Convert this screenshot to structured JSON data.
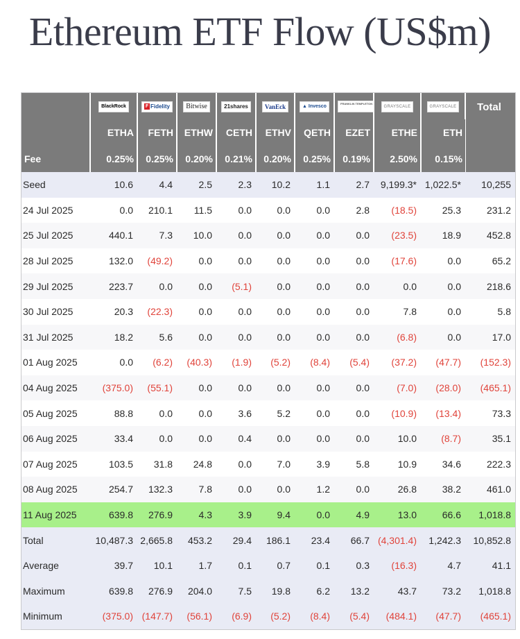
{
  "title": "Ethereum ETF Flow (US$m)",
  "issuers": [
    "BlackRock",
    "Fidelity",
    "Bitwise",
    "21shares",
    "VanEck",
    "Invesco",
    "FRANKLIN TEMPLETON",
    "GRAYSCALE",
    "GRAYSCALE"
  ],
  "total_header": "Total",
  "tickers": [
    "ETHA",
    "FETH",
    "ETHW",
    "CETH",
    "ETHV",
    "QETH",
    "EZET",
    "ETHE",
    "ETH"
  ],
  "fee_label": "Fee",
  "fees": [
    "0.25%",
    "0.25%",
    "0.20%",
    "0.21%",
    "0.20%",
    "0.25%",
    "0.19%",
    "2.50%",
    "0.15%"
  ],
  "rows": [
    {
      "label": "Seed",
      "values": [
        "10.6",
        "4.4",
        "2.5",
        "2.3",
        "10.2",
        "1.1",
        "2.7",
        "9,199.3*",
        "1,022.5*",
        "10,255"
      ]
    },
    {
      "label": "24 Jul 2025",
      "values": [
        "0.0",
        "210.1",
        "11.5",
        "0.0",
        "0.0",
        "0.0",
        "2.8",
        "(18.5)",
        "25.3",
        "231.2"
      ]
    },
    {
      "label": "25 Jul 2025",
      "values": [
        "440.1",
        "7.3",
        "10.0",
        "0.0",
        "0.0",
        "0.0",
        "0.0",
        "(23.5)",
        "18.9",
        "452.8"
      ]
    },
    {
      "label": "28 Jul 2025",
      "values": [
        "132.0",
        "(49.2)",
        "0.0",
        "0.0",
        "0.0",
        "0.0",
        "0.0",
        "(17.6)",
        "0.0",
        "65.2"
      ]
    },
    {
      "label": "29 Jul 2025",
      "values": [
        "223.7",
        "0.0",
        "0.0",
        "(5.1)",
        "0.0",
        "0.0",
        "0.0",
        "0.0",
        "0.0",
        "218.6"
      ]
    },
    {
      "label": "30 Jul 2025",
      "values": [
        "20.3",
        "(22.3)",
        "0.0",
        "0.0",
        "0.0",
        "0.0",
        "0.0",
        "7.8",
        "0.0",
        "5.8"
      ]
    },
    {
      "label": "31 Jul 2025",
      "values": [
        "18.2",
        "5.6",
        "0.0",
        "0.0",
        "0.0",
        "0.0",
        "0.0",
        "(6.8)",
        "0.0",
        "17.0"
      ]
    },
    {
      "label": "01 Aug 2025",
      "values": [
        "0.0",
        "(6.2)",
        "(40.3)",
        "(1.9)",
        "(5.2)",
        "(8.4)",
        "(5.4)",
        "(37.2)",
        "(47.7)",
        "(152.3)"
      ]
    },
    {
      "label": "04 Aug 2025",
      "values": [
        "(375.0)",
        "(55.1)",
        "0.0",
        "0.0",
        "0.0",
        "0.0",
        "0.0",
        "(7.0)",
        "(28.0)",
        "(465.1)"
      ]
    },
    {
      "label": "05 Aug 2025",
      "values": [
        "88.8",
        "0.0",
        "0.0",
        "3.6",
        "5.2",
        "0.0",
        "0.0",
        "(10.9)",
        "(13.4)",
        "73.3"
      ]
    },
    {
      "label": "06 Aug 2025",
      "values": [
        "33.4",
        "0.0",
        "0.0",
        "0.4",
        "0.0",
        "0.0",
        "0.0",
        "10.0",
        "(8.7)",
        "35.1"
      ]
    },
    {
      "label": "07 Aug 2025",
      "values": [
        "103.5",
        "31.8",
        "24.8",
        "0.0",
        "7.0",
        "3.9",
        "5.8",
        "10.9",
        "34.6",
        "222.3"
      ]
    },
    {
      "label": "08 Aug 2025",
      "values": [
        "254.7",
        "132.3",
        "7.8",
        "0.0",
        "0.0",
        "1.2",
        "0.0",
        "26.8",
        "38.2",
        "461.0"
      ]
    },
    {
      "label": "11 Aug 2025",
      "highlight": true,
      "values": [
        "639.8",
        "276.9",
        "4.3",
        "3.9",
        "9.4",
        "0.0",
        "4.9",
        "13.0",
        "66.6",
        "1,018.8"
      ]
    },
    {
      "label": "Total",
      "values": [
        "10,487.3",
        "2,665.8",
        "453.2",
        "29.4",
        "186.1",
        "23.4",
        "66.7",
        "(4,301.4)",
        "1,242.3",
        "10,852.8"
      ]
    },
    {
      "label": "Average",
      "values": [
        "39.7",
        "10.1",
        "1.7",
        "0.1",
        "0.7",
        "0.1",
        "0.3",
        "(16.3)",
        "4.7",
        "41.1"
      ]
    },
    {
      "label": "Maximum",
      "values": [
        "639.8",
        "276.9",
        "204.0",
        "7.5",
        "19.8",
        "6.2",
        "13.2",
        "43.7",
        "73.2",
        "1,018.8"
      ]
    },
    {
      "label": "Minimum",
      "values": [
        "(375.0)",
        "(147.7)",
        "(56.1)",
        "(6.9)",
        "(5.2)",
        "(8.4)",
        "(5.4)",
        "(484.1)",
        "(47.7)",
        "(465.1)"
      ]
    }
  ],
  "colors": {
    "header_gray": "#7b7b7b",
    "negative": "#e0433a",
    "highlight": "#a8f08a",
    "row_shade": "#e9ebf5"
  }
}
